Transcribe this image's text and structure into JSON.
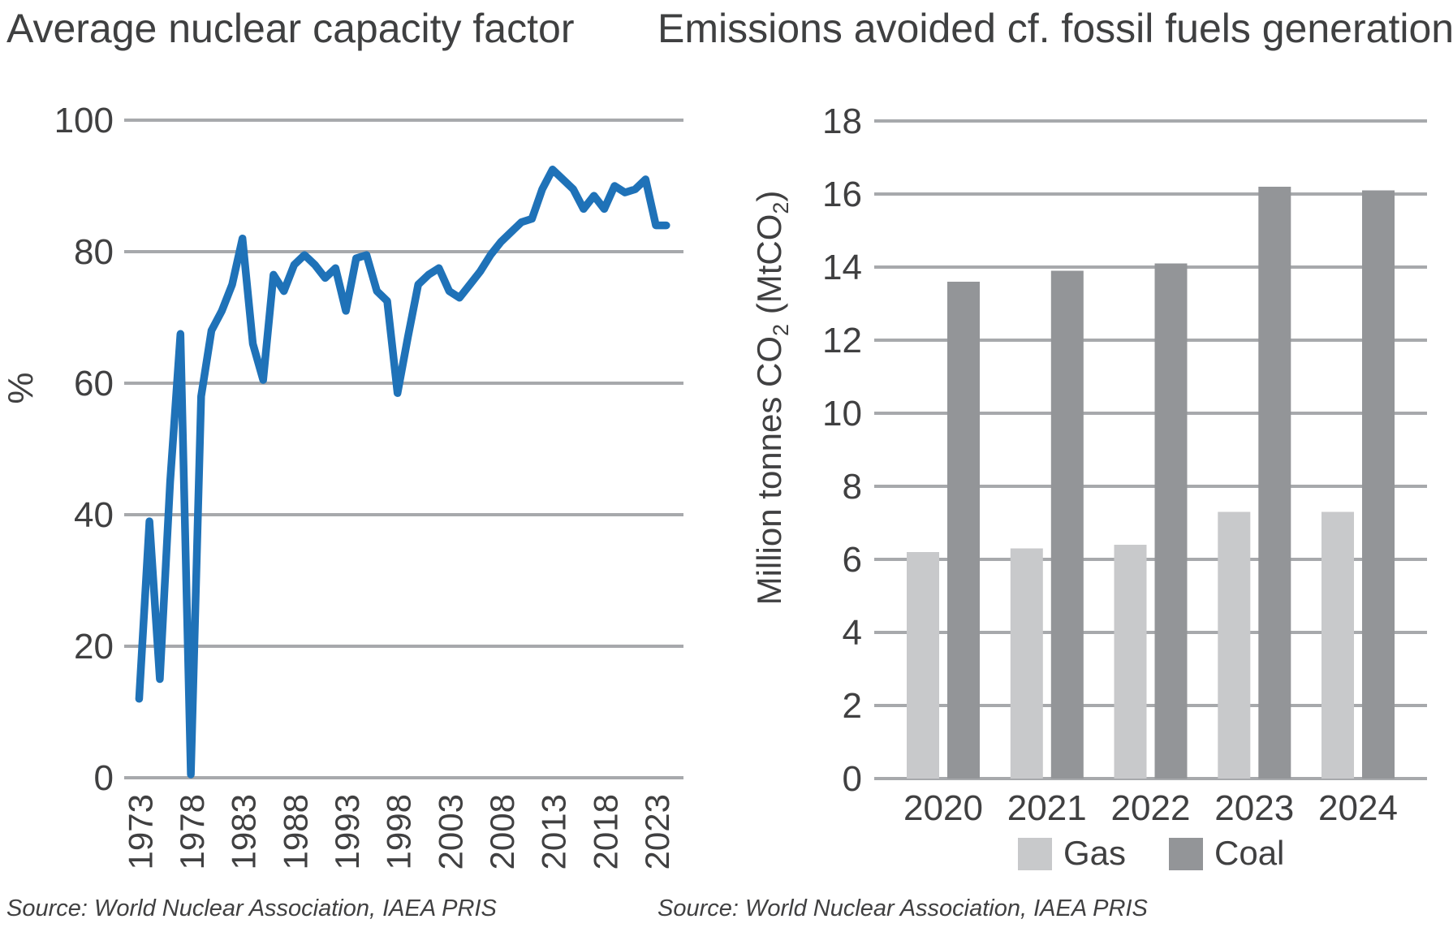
{
  "page": {
    "background": "#ffffff"
  },
  "colors": {
    "line_blue": "#1F72B8",
    "grid_gray": "#A7A9AC",
    "gas_gray": "#C8C9CB",
    "coal_gray": "#939598",
    "text_dark": "#404041"
  },
  "charts": [
    {
      "title": "Average nuclear capacity factor",
      "source": "Source: World Nuclear Association, IAEA PRIS"
    },
    {
      "title": "Emissions avoided cf. fossil fuels generation",
      "source": "Source: World Nuclear Association, IAEA PRIS"
    }
  ],
  "chart_data": [
    {
      "type": "line",
      "title": "Average nuclear capacity factor",
      "xlabel": "",
      "ylabel": "%",
      "ylim": [
        0,
        100
      ],
      "yticks": [
        0,
        20,
        40,
        60,
        80,
        100
      ],
      "xticks": [
        1973,
        1978,
        1983,
        1988,
        1993,
        1998,
        2003,
        2008,
        2013,
        2018,
        2023
      ],
      "grid": true,
      "x": [
        1973,
        1974,
        1975,
        1976,
        1977,
        1978,
        1979,
        1980,
        1981,
        1982,
        1983,
        1984,
        1985,
        1986,
        1987,
        1988,
        1989,
        1990,
        1991,
        1992,
        1993,
        1994,
        1995,
        1996,
        1997,
        1998,
        1999,
        2000,
        2001,
        2002,
        2003,
        2004,
        2005,
        2006,
        2007,
        2008,
        2009,
        2010,
        2011,
        2012,
        2013,
        2014,
        2015,
        2016,
        2017,
        2018,
        2019,
        2020,
        2021,
        2022,
        2023,
        2024
      ],
      "series": [
        {
          "name": "Average nuclear capacity factor (%)",
          "color": "#1F72B8",
          "values": [
            12,
            39,
            15,
            45,
            67.5,
            0.5,
            58,
            68,
            71,
            75,
            82,
            66,
            60.5,
            76.5,
            74,
            78,
            79.5,
            78,
            76,
            77.5,
            71,
            79,
            79.5,
            74,
            72.5,
            58.5,
            67,
            75,
            76.5,
            77.5,
            74,
            73,
            75,
            77,
            79.5,
            81.5,
            83,
            84.5,
            85,
            89.5,
            92.5,
            91,
            89.5,
            86.5,
            88.5,
            86.5,
            90,
            89,
            89.5,
            91,
            84,
            84
          ]
        }
      ]
    },
    {
      "type": "bar",
      "title": "Emissions avoided cf. fossil fuels generation",
      "xlabel": "",
      "ylabel": "Million tonnes CO₂ (MtCO₂)",
      "ylabel_parts": [
        {
          "t": "Million tonnes CO"
        },
        {
          "t": "2",
          "sub": true
        },
        {
          "t": " (MtCO"
        },
        {
          "t": "2",
          "sub": true
        },
        {
          "t": ")"
        }
      ],
      "ylim": [
        0,
        18
      ],
      "yticks": [
        0,
        2,
        4,
        6,
        8,
        10,
        12,
        14,
        16,
        18
      ],
      "categories": [
        "2020",
        "2021",
        "2022",
        "2023",
        "2024"
      ],
      "grid": true,
      "legend_position": "bottom",
      "series": [
        {
          "name": "Gas",
          "color": "#C8C9CB",
          "values": [
            6.2,
            6.3,
            6.4,
            7.3,
            7.3
          ]
        },
        {
          "name": "Coal",
          "color": "#939598",
          "values": [
            13.6,
            13.9,
            14.1,
            16.2,
            16.1
          ]
        }
      ]
    }
  ]
}
